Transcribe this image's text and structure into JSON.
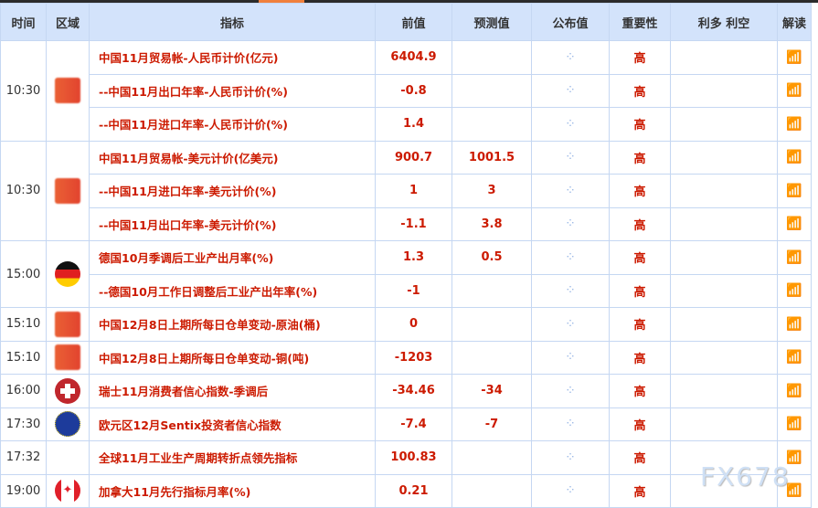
{
  "headers": {
    "time": "时间",
    "region": "区域",
    "indicator": "指标",
    "previous": "前值",
    "forecast": "预测值",
    "actual": "公布值",
    "importance": "重要性",
    "impact": "利多 利空",
    "interpret": "解读"
  },
  "groups": [
    {
      "time": "10:30",
      "flag": "china-flag",
      "rows": [
        {
          "name": "中国11月贸易帐-人民币计价(亿元)",
          "previous": "6404.9",
          "forecast": "",
          "importance": "高"
        },
        {
          "name": "--中国11月出口年率-人民币计价(%)",
          "previous": "-0.8",
          "forecast": "",
          "importance": "高"
        },
        {
          "name": "--中国11月进口年率-人民币计价(%)",
          "previous": "1.4",
          "forecast": "",
          "importance": "高"
        }
      ]
    },
    {
      "time": "10:30",
      "flag": "china-flag",
      "rows": [
        {
          "name": "中国11月贸易帐-美元计价(亿美元)",
          "previous": "900.7",
          "forecast": "1001.5",
          "importance": "高"
        },
        {
          "name": "--中国11月进口年率-美元计价(%)",
          "previous": "1",
          "forecast": "3",
          "importance": "高"
        },
        {
          "name": "--中国11月出口年率-美元计价(%)",
          "previous": "-1.1",
          "forecast": "3.8",
          "importance": "高"
        }
      ]
    },
    {
      "time": "15:00",
      "flag": "germany-flag",
      "rows": [
        {
          "name": "德国10月季调后工业产出月率(%)",
          "previous": "1.3",
          "forecast": "0.5",
          "importance": "高"
        },
        {
          "name": "--德国10月工作日调整后工业产出年率(%)",
          "previous": "-1",
          "forecast": "",
          "importance": "高"
        }
      ]
    },
    {
      "time": "15:10",
      "flag": "china-flag",
      "rows": [
        {
          "name": "中国12月8日上期所每日仓单变动-原油(桶)",
          "previous": "0",
          "forecast": "",
          "importance": "高"
        }
      ]
    },
    {
      "time": "15:10",
      "flag": "china-flag",
      "rows": [
        {
          "name": "中国12月8日上期所每日仓单变动-铜(吨)",
          "previous": "-1203",
          "forecast": "",
          "importance": "高"
        }
      ]
    },
    {
      "time": "16:00",
      "flag": "switzerland-flag",
      "rows": [
        {
          "name": "瑞士11月消费者信心指数-季调后",
          "previous": "-34.46",
          "forecast": "-34",
          "importance": "高"
        }
      ]
    },
    {
      "time": "17:30",
      "flag": "eu-flag",
      "rows": [
        {
          "name": "欧元区12月Sentix投资者信心指数",
          "previous": "-7.4",
          "forecast": "-7",
          "importance": "高"
        }
      ]
    },
    {
      "time": "17:32",
      "flag": "",
      "rows": [
        {
          "name": "全球11月工业生产周期转折点领先指标",
          "previous": "100.83",
          "forecast": "",
          "importance": "高"
        }
      ]
    },
    {
      "time": "19:00",
      "flag": "canada-flag",
      "rows": [
        {
          "name": "加拿大11月先行指标月率(%)",
          "previous": "0.21",
          "forecast": "",
          "importance": "高"
        }
      ]
    }
  ],
  "watermark": "FX678",
  "colors": {
    "header_bg": "#d3e3fb",
    "accent_red": "#cc1a00",
    "border": "#c5d7f2"
  }
}
